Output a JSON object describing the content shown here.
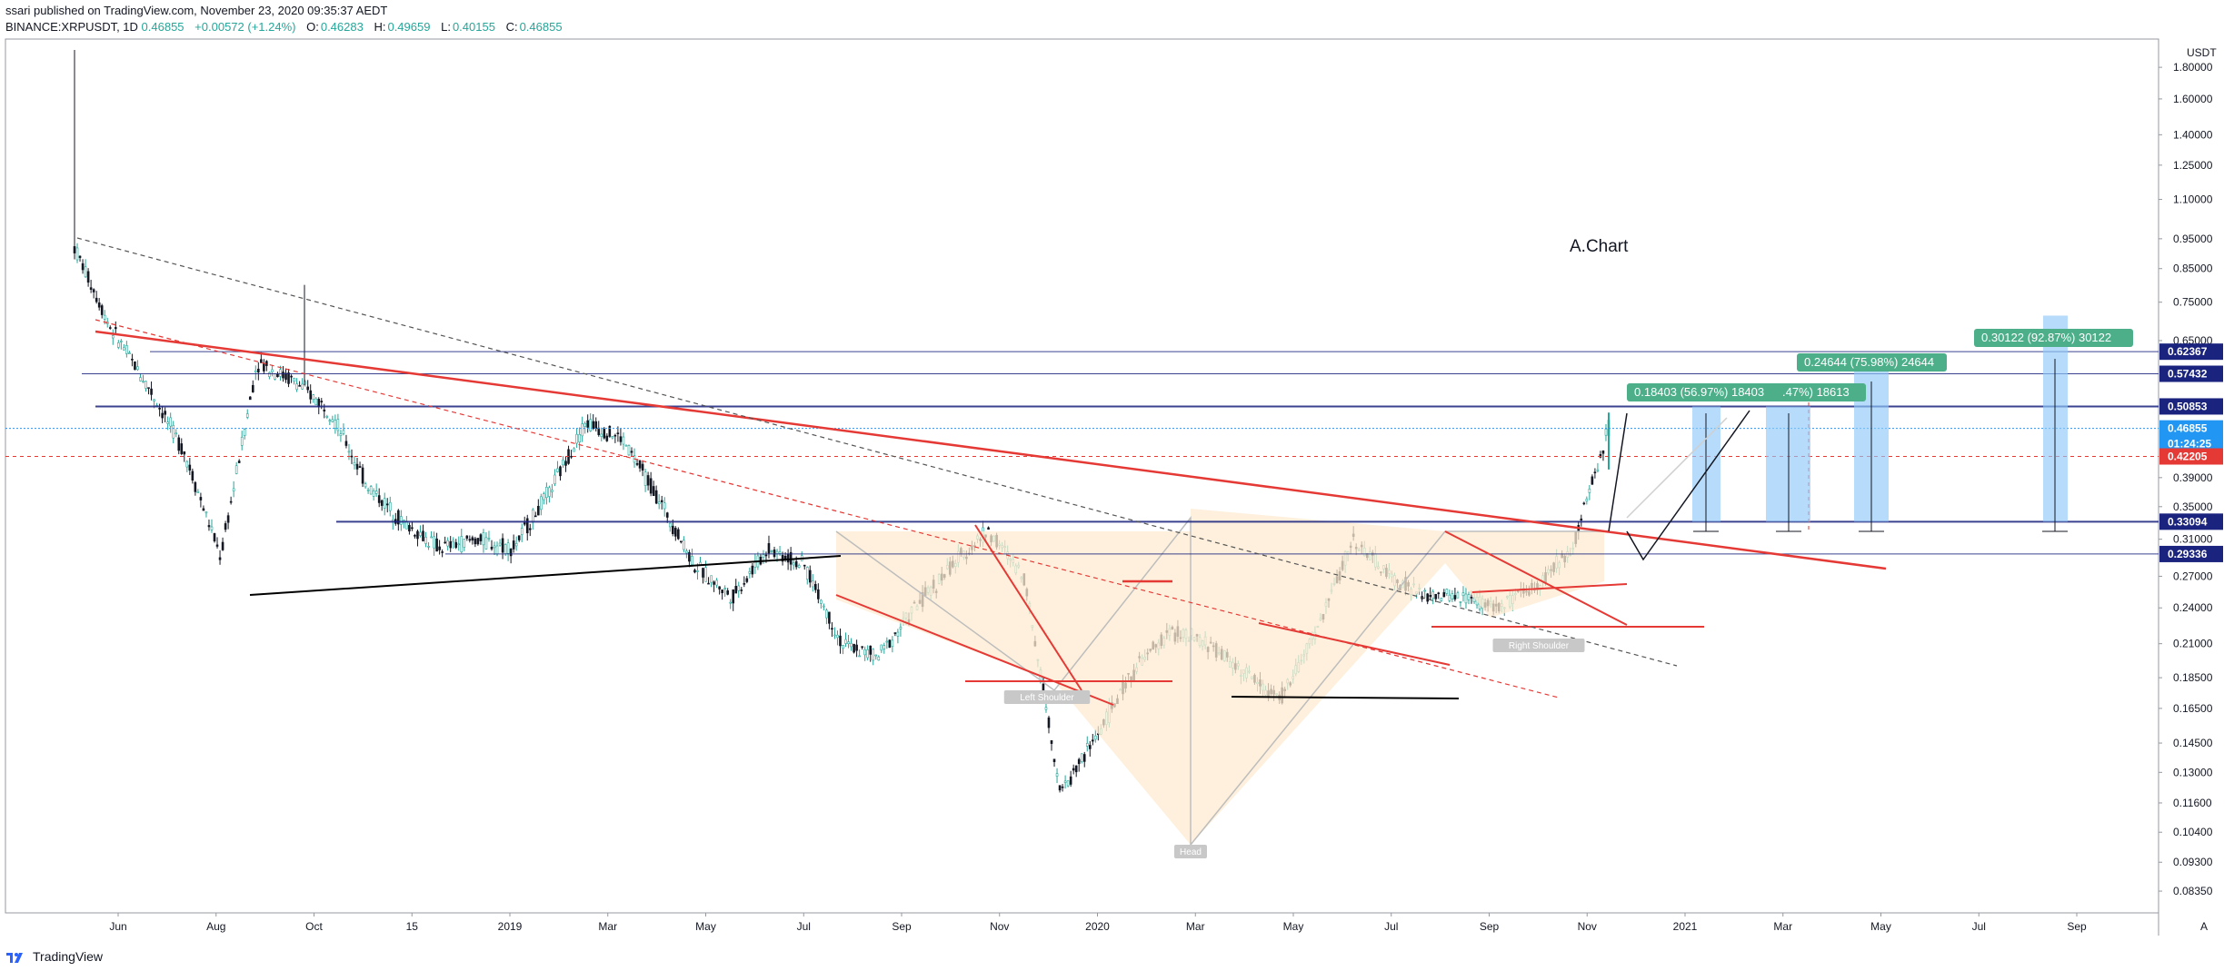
{
  "header": {
    "published": "ssari published on TradingView.com, November 23, 2020 09:35:37 AEDT",
    "symbol": "BINANCE:XRPUSDT, 1D",
    "last": "0.46855",
    "change": "+0.00572 (+1.24%)",
    "open_label": "O:",
    "open": "0.46283",
    "high_label": "H:",
    "high": "0.49659",
    "low_label": "L:",
    "low": "0.40155",
    "close_label": "C:",
    "close": "0.46855"
  },
  "footer": {
    "brand": "TradingView"
  },
  "colors": {
    "up": "#26a69a",
    "down": "#131722",
    "trendline": "#e53935",
    "level": "#1a237e",
    "projection": "#90caf9",
    "pattern_fill": "#fdebd0",
    "label_green": "#4caf8a"
  },
  "chart_data": {
    "type": "candlestick",
    "annotation_title": "A.Chart",
    "y_scale": "log",
    "y_currency": "USDT",
    "y_ticks": [
      "1.80000",
      "1.60000",
      "1.40000",
      "1.25000",
      "1.10000",
      "0.95000",
      "0.85000",
      "0.75000",
      "0.65000",
      "0.39000",
      "0.35000",
      "0.31000",
      "0.27000",
      "0.24000",
      "0.21000",
      "0.18500",
      "0.16500",
      "0.14500",
      "0.13000",
      "0.11600",
      "0.10400",
      "0.09300",
      "0.08350"
    ],
    "x_ticks": [
      "Jun",
      "Aug",
      "Oct",
      "15",
      "2019",
      "Mar",
      "May",
      "Jul",
      "Sep",
      "Nov",
      "2020",
      "Mar",
      "May",
      "Jul",
      "Sep",
      "Nov",
      "2021",
      "Mar",
      "May",
      "Jul",
      "Sep"
    ],
    "price_tags": [
      {
        "label": "0.62367",
        "kind": "level"
      },
      {
        "label": "0.57432",
        "kind": "level"
      },
      {
        "label": "0.50853",
        "kind": "level"
      },
      {
        "label": "0.46855",
        "kind": "last"
      },
      {
        "label": "01:24:25",
        "kind": "countdown"
      },
      {
        "label": "0.42205",
        "kind": "marker"
      },
      {
        "label": "0.33094",
        "kind": "level"
      },
      {
        "label": "0.29336",
        "kind": "level"
      }
    ],
    "pattern_labels": [
      "Left Shoulder",
      "Head",
      "Right Shoulder"
    ],
    "targets": [
      {
        "label": "0.18403 (56.97%) 18403"
      },
      {
        "label": ".47%) 18613"
      },
      {
        "label": "0.24644 (75.98%) 24644"
      },
      {
        "label": "0.30122 (92.87%) 30122"
      }
    ],
    "path_points": [
      [
        0.92,
        0.65
      ],
      [
        0.68,
        0.63
      ],
      [
        0.55,
        0.55
      ],
      [
        0.43,
        0.48
      ],
      [
        0.29,
        0.25
      ],
      [
        0.6,
        0.4
      ],
      [
        0.56,
        0.58
      ],
      [
        0.5,
        0.45
      ],
      [
        0.38,
        0.3
      ],
      [
        0.33,
        0.32
      ],
      [
        0.3,
        0.3
      ],
      [
        0.31,
        0.33
      ],
      [
        0.3,
        0.31
      ],
      [
        0.37,
        0.34
      ],
      [
        0.48,
        0.55
      ],
      [
        0.45,
        0.5
      ],
      [
        0.36,
        0.34
      ],
      [
        0.28,
        0.26
      ],
      [
        0.25,
        0.22
      ],
      [
        0.3,
        0.29
      ],
      [
        0.28,
        0.26
      ],
      [
        0.21,
        0.19
      ],
      [
        0.2,
        0.18
      ],
      [
        0.24,
        0.22
      ],
      [
        0.28,
        0.26
      ],
      [
        0.32,
        0.34
      ],
      [
        0.27,
        0.24
      ],
      [
        0.12,
        0.1
      ],
      [
        0.15,
        0.13
      ],
      [
        0.19,
        0.17
      ],
      [
        0.22,
        0.21
      ],
      [
        0.21,
        0.2
      ],
      [
        0.19,
        0.18
      ],
      [
        0.17,
        0.2
      ],
      [
        0.22,
        0.23
      ],
      [
        0.31,
        0.33
      ],
      [
        0.27,
        0.28
      ],
      [
        0.25,
        0.24
      ],
      [
        0.25,
        0.26
      ],
      [
        0.24,
        0.25
      ],
      [
        0.26,
        0.27
      ],
      [
        0.3,
        0.32
      ],
      [
        0.47,
        0.5
      ]
    ]
  }
}
